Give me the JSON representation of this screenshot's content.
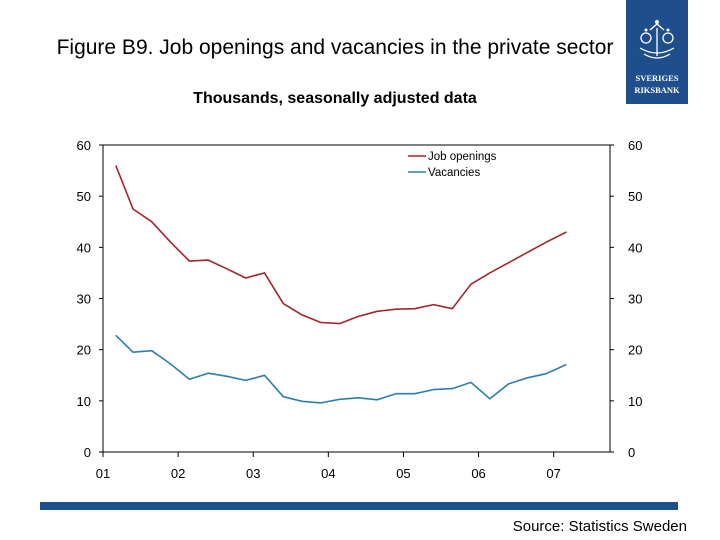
{
  "header": {
    "title": "Figure B9. Job openings and vacancies in the private sector",
    "subtitle": "Thousands, seasonally adjusted data"
  },
  "logo": {
    "text_top": "SVERIGES",
    "text_bottom": "RIKSBANK",
    "color": "#1f4e8c"
  },
  "footer": {
    "source": "Source: Statistics Sweden",
    "bar_color": "#1f4e8c"
  },
  "chart_data": {
    "type": "line",
    "ylim": [
      0,
      60
    ],
    "yticks": [
      "0",
      "10",
      "20",
      "30",
      "40",
      "50",
      "60"
    ],
    "xlim": [
      2001.0,
      2007.75
    ],
    "xticks": [
      {
        "label": "01",
        "value": 2001.0
      },
      {
        "label": "02",
        "value": 2002.0
      },
      {
        "label": "03",
        "value": 2003.0
      },
      {
        "label": "04",
        "value": 2004.0
      },
      {
        "label": "05",
        "value": 2005.0
      },
      {
        "label": "06",
        "value": 2006.0
      },
      {
        "label": "07",
        "value": 2007.0
      }
    ],
    "grid": false,
    "legend_position": "top-right",
    "series": [
      {
        "name": "Job openings",
        "color": "#a5232a",
        "points": [
          [
            2001.17,
            56.0
          ],
          [
            2001.4,
            47.5
          ],
          [
            2001.65,
            45.0
          ],
          [
            2001.9,
            41.0
          ],
          [
            2002.15,
            37.3
          ],
          [
            2002.4,
            37.5
          ],
          [
            2002.65,
            35.8
          ],
          [
            2002.9,
            34.0
          ],
          [
            2003.15,
            35.0
          ],
          [
            2003.4,
            29.0
          ],
          [
            2003.65,
            26.8
          ],
          [
            2003.9,
            25.3
          ],
          [
            2004.15,
            25.1
          ],
          [
            2004.4,
            26.5
          ],
          [
            2004.65,
            27.5
          ],
          [
            2004.9,
            27.9
          ],
          [
            2005.15,
            28.0
          ],
          [
            2005.4,
            28.8
          ],
          [
            2005.65,
            28.0
          ],
          [
            2005.9,
            32.8
          ],
          [
            2006.15,
            35.0
          ],
          [
            2006.4,
            37.0
          ],
          [
            2006.65,
            39.0
          ],
          [
            2006.9,
            41.0
          ],
          [
            2007.17,
            43.0
          ]
        ]
      },
      {
        "name": "Vacancies",
        "color": "#2a7fad",
        "points": [
          [
            2001.17,
            22.8
          ],
          [
            2001.4,
            19.5
          ],
          [
            2001.65,
            19.8
          ],
          [
            2001.9,
            17.2
          ],
          [
            2002.15,
            14.2
          ],
          [
            2002.4,
            15.4
          ],
          [
            2002.65,
            14.8
          ],
          [
            2002.9,
            14.0
          ],
          [
            2003.15,
            15.0
          ],
          [
            2003.4,
            10.8
          ],
          [
            2003.65,
            9.9
          ],
          [
            2003.9,
            9.6
          ],
          [
            2004.15,
            10.3
          ],
          [
            2004.4,
            10.6
          ],
          [
            2004.65,
            10.2
          ],
          [
            2004.9,
            11.4
          ],
          [
            2005.15,
            11.4
          ],
          [
            2005.4,
            12.2
          ],
          [
            2005.65,
            12.4
          ],
          [
            2005.9,
            13.6
          ],
          [
            2006.15,
            10.4
          ],
          [
            2006.4,
            13.3
          ],
          [
            2006.65,
            14.5
          ],
          [
            2006.9,
            15.3
          ],
          [
            2007.17,
            17.1
          ]
        ]
      }
    ]
  }
}
